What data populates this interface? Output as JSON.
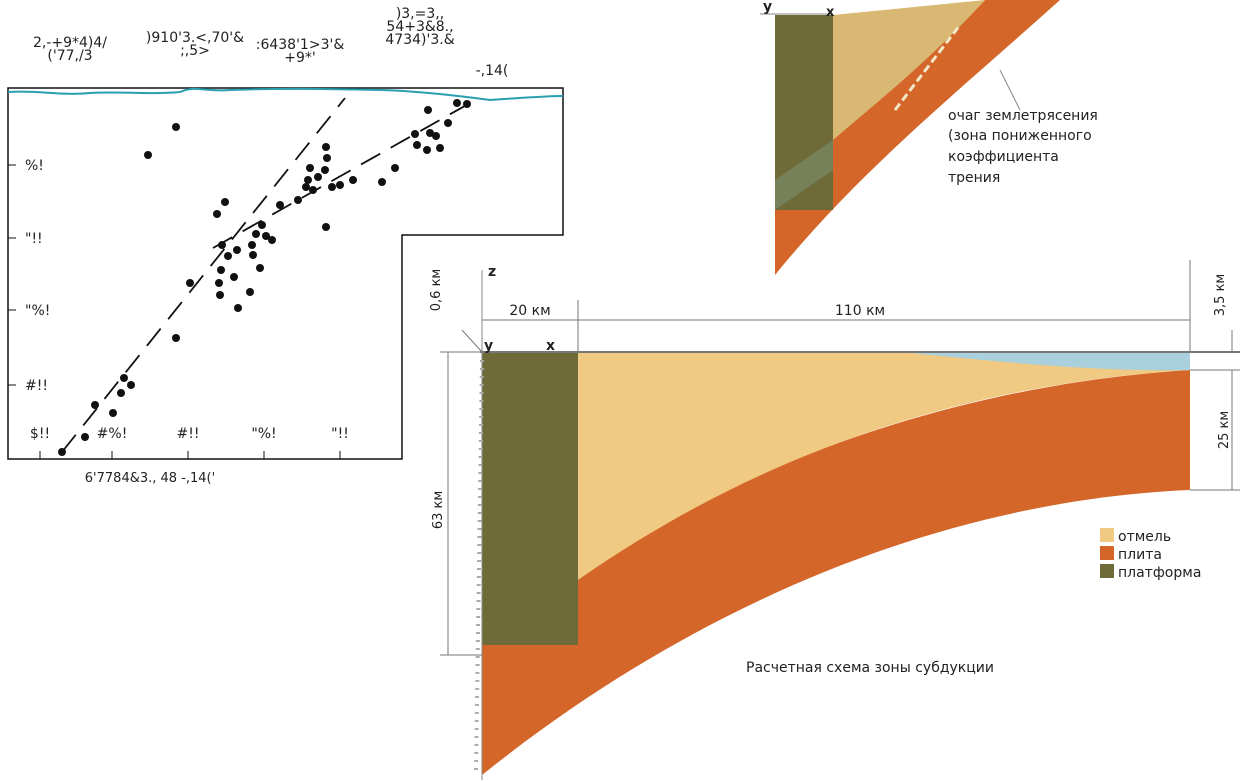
{
  "scatter_panel": {
    "top_labels": [
      [
        "2,-+9*4)4/",
        "('77,/3"
      ],
      [
        ")910'3.<,70'&",
        ";,5>"
      ],
      [
        ":6438'1>3'&",
        "+9*'"
      ],
      [
        ")3,=3,,",
        "54+3&8.,",
        "4734)'3.&"
      ],
      [
        "-,14("
      ]
    ],
    "y_tick_labels": [
      "%!",
      "\"!!",
      "\"%!",
      "#!!"
    ],
    "x_tick_labels": [
      "$!!",
      "#%!",
      "#!!",
      "\"%!",
      "\"!!"
    ],
    "x_axis_title": "6'7784&3., 48 -,14('"
  },
  "inset_diagram": {
    "y_label": "y",
    "x_label": "x",
    "annotation": [
      "очаг землетрясения",
      "(зона пониженного",
      "коэффициента",
      "трения"
    ]
  },
  "main_diagram": {
    "z_label": "z",
    "y_label": "y",
    "x_label": "x",
    "dimensions": {
      "top_left": "0,6 км",
      "platform_width": "20 км",
      "shelf_width": "110 км",
      "top_right": "3,5 км",
      "right_depth": "25 км",
      "left_depth": "63 км"
    },
    "legend": [
      "отмель",
      "плита",
      "платформа"
    ],
    "caption": "Расчетная схема зоны субдукции"
  }
}
